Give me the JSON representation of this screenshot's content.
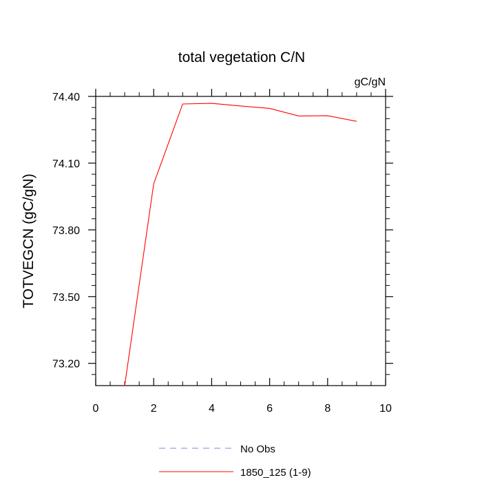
{
  "chart_data": {
    "type": "line",
    "title": "total vegetation C/N",
    "units_label": "gC/gN",
    "xlabel": "",
    "ylabel": "TOTVEGCN  (gC/gN)",
    "xlim": [
      0,
      10
    ],
    "ylim": [
      73.1,
      74.4
    ],
    "x_ticks": [
      0,
      2,
      4,
      6,
      8,
      10
    ],
    "x_tick_labels": [
      "0",
      "2",
      "4",
      "6",
      "8",
      "10"
    ],
    "y_ticks": [
      73.2,
      73.5,
      73.8,
      74.1,
      74.4
    ],
    "y_tick_labels": [
      "73.20",
      "73.50",
      "73.80",
      "74.10",
      "74.40"
    ],
    "grid": false,
    "legend_position": "bottom",
    "series": [
      {
        "name": "No Obs",
        "color": "#8080e0",
        "dash": "dashed",
        "x": [],
        "y": []
      },
      {
        "name": "1850_125 (1-9)",
        "color": "#ff0000",
        "dash": "solid",
        "x": [
          1,
          2,
          3,
          4,
          5,
          6,
          7,
          8,
          9
        ],
        "y": [
          73.1,
          74.007,
          74.366,
          74.369,
          74.357,
          74.346,
          74.312,
          74.313,
          74.288
        ]
      }
    ]
  }
}
